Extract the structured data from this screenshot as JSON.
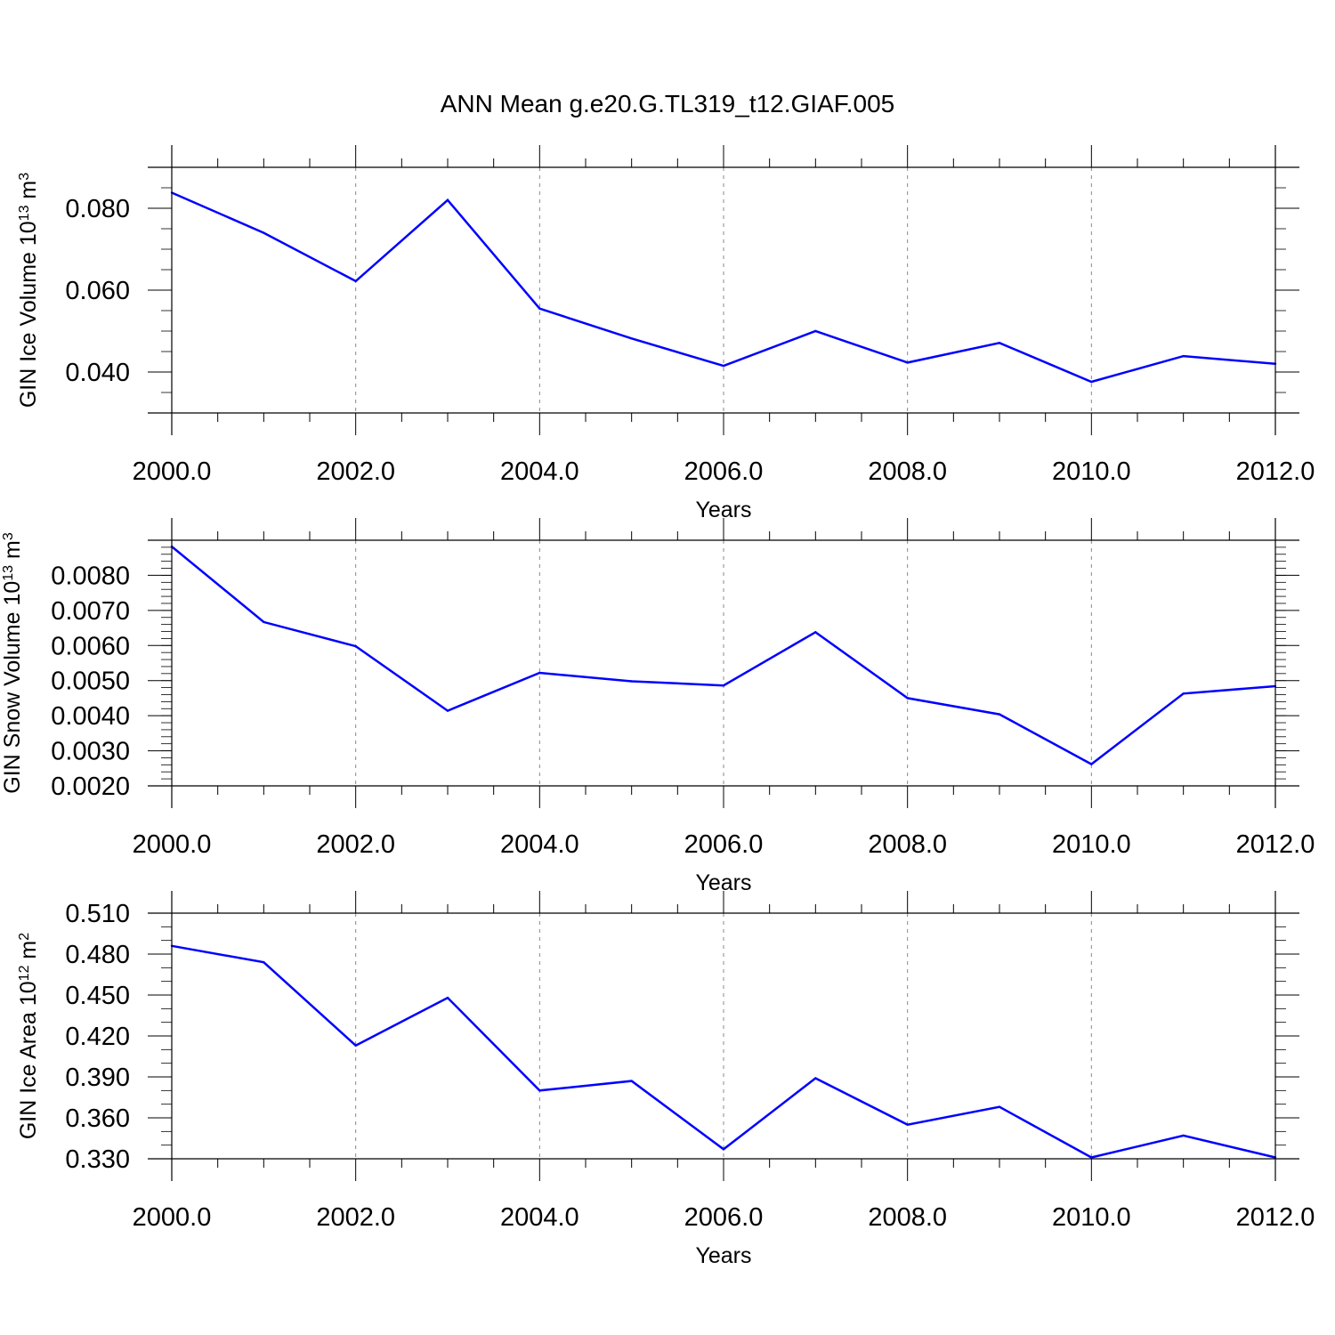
{
  "title": "ANN Mean g.e20.G.TL319_t12.GIAF.005",
  "colors": {
    "line": "#0000ff",
    "axis": "#000000",
    "grid": "#888888",
    "background": "#ffffff"
  },
  "chart_data": [
    {
      "type": "line",
      "xlabel": "Years",
      "ylabel": "GIN Ice Volume 10",
      "ylabel_exp": "13",
      "ylabel_unit": " m",
      "ylabel_unit_exp": "3",
      "x": [
        2000,
        2001,
        2002,
        2003,
        2004,
        2005,
        2006,
        2007,
        2008,
        2009,
        2010,
        2011,
        2012
      ],
      "series": [
        {
          "values": [
            0.0838,
            0.074,
            0.0622,
            0.082,
            0.0555,
            0.0482,
            0.0415,
            0.05,
            0.0423,
            0.0471,
            0.0376,
            0.0439,
            0.042
          ]
        }
      ],
      "xlim": [
        2000,
        2012
      ],
      "ylim": [
        0.03,
        0.09
      ],
      "xticks": [
        "2000.0",
        "2002.0",
        "2004.0",
        "2006.0",
        "2008.0",
        "2010.0",
        "2012.0"
      ],
      "yticks": [
        {
          "value": 0.04,
          "label": "0.040"
        },
        {
          "value": 0.06,
          "label": "0.060"
        },
        {
          "value": 0.08,
          "label": "0.080"
        }
      ],
      "y_minor_step": 0.005,
      "grid": "vertical-dashed"
    },
    {
      "type": "line",
      "xlabel": "Years",
      "ylabel": "GIN Snow Volume 10",
      "ylabel_exp": "13",
      "ylabel_unit": " m",
      "ylabel_unit_exp": "3",
      "x": [
        2000,
        2001,
        2002,
        2003,
        2004,
        2005,
        2006,
        2007,
        2008,
        2009,
        2010,
        2011,
        2012
      ],
      "series": [
        {
          "values": [
            0.00882,
            0.00667,
            0.00598,
            0.00414,
            0.00522,
            0.00498,
            0.00486,
            0.00638,
            0.0045,
            0.00404,
            0.00262,
            0.00463,
            0.00484
          ]
        }
      ],
      "xlim": [
        2000,
        2012
      ],
      "ylim": [
        0.002,
        0.009
      ],
      "xticks": [
        "2000.0",
        "2002.0",
        "2004.0",
        "2006.0",
        "2008.0",
        "2010.0",
        "2012.0"
      ],
      "yticks": [
        {
          "value": 0.002,
          "label": "0.0020"
        },
        {
          "value": 0.003,
          "label": "0.0030"
        },
        {
          "value": 0.004,
          "label": "0.0040"
        },
        {
          "value": 0.005,
          "label": "0.0050"
        },
        {
          "value": 0.006,
          "label": "0.0060"
        },
        {
          "value": 0.007,
          "label": "0.0070"
        },
        {
          "value": 0.008,
          "label": "0.0080"
        }
      ],
      "y_minor_step": 0.0002,
      "grid": "vertical-dashed"
    },
    {
      "type": "line",
      "xlabel": "Years",
      "ylabel": "GIN Ice Area 10",
      "ylabel_exp": "12",
      "ylabel_unit": " m",
      "ylabel_unit_exp": "2",
      "x": [
        2000,
        2001,
        2002,
        2003,
        2004,
        2005,
        2006,
        2007,
        2008,
        2009,
        2010,
        2011,
        2012
      ],
      "series": [
        {
          "values": [
            0.486,
            0.474,
            0.413,
            0.448,
            0.38,
            0.387,
            0.337,
            0.389,
            0.355,
            0.368,
            0.331,
            0.347,
            0.331
          ]
        }
      ],
      "xlim": [
        2000,
        2012
      ],
      "ylim": [
        0.33,
        0.51
      ],
      "xticks": [
        "2000.0",
        "2002.0",
        "2004.0",
        "2006.0",
        "2008.0",
        "2010.0",
        "2012.0"
      ],
      "yticks": [
        {
          "value": 0.33,
          "label": "0.330"
        },
        {
          "value": 0.36,
          "label": "0.360"
        },
        {
          "value": 0.39,
          "label": "0.390"
        },
        {
          "value": 0.42,
          "label": "0.420"
        },
        {
          "value": 0.45,
          "label": "0.450"
        },
        {
          "value": 0.48,
          "label": "0.480"
        },
        {
          "value": 0.51,
          "label": "0.510"
        }
      ],
      "y_minor_step": 0.01,
      "grid": "vertical-dashed"
    }
  ]
}
